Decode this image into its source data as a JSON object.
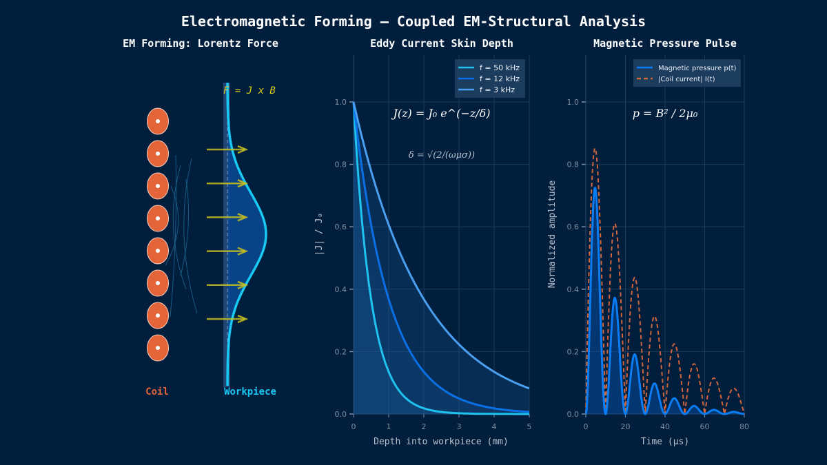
{
  "title": "Electromagnetic Forming — Coupled EM-Structural Analysis",
  "colors": {
    "background": "#011e3c",
    "coil": "#e4643a",
    "workpiece": "#18c8f5",
    "force": "#c8c020",
    "grid": "#1c3a5c",
    "tick": "#7f8fa3"
  },
  "panel1": {
    "title": "EM Forming: Lorentz Force",
    "force_label": "F = J x B",
    "coil_label": "Coil",
    "workpiece_label": "Workpiece",
    "coil_count": 8,
    "arrow_count": 5
  },
  "chart_data": [
    {
      "type": "line",
      "title": "Eddy Current Skin Depth",
      "xlabel": "Depth into workpiece (mm)",
      "ylabel": "|J| / J₀",
      "xlim": [
        0,
        5
      ],
      "ylim": [
        0,
        1.15
      ],
      "xticks": [
        "0",
        "1",
        "2",
        "3",
        "4",
        "5"
      ],
      "yticks": [
        "0.0",
        "0.2",
        "0.4",
        "0.6",
        "0.8",
        "1.0"
      ],
      "grid": true,
      "legend": "top-right",
      "annotation_1": "J(z) = J₀ e^(−z/δ)",
      "annotation_2": "δ = √(2/(ωμσ))",
      "series": [
        {
          "name": "f = 50 kHz",
          "skin_depth_mm": 0.5,
          "color": "#1ec3ef"
        },
        {
          "name": "f = 12 kHz",
          "skin_depth_mm": 1.0,
          "color": "#0b6fe6"
        },
        {
          "name": "f = 3 kHz",
          "skin_depth_mm": 2.0,
          "color": "#4a9ff0"
        }
      ]
    },
    {
      "type": "line",
      "title": "Magnetic Pressure Pulse",
      "xlabel": "Time (µs)",
      "ylabel": "Normalized amplitude",
      "xlim": [
        0,
        80
      ],
      "ylim": [
        0,
        1.15
      ],
      "xticks": [
        "0",
        "20",
        "40",
        "60",
        "80"
      ],
      "yticks": [
        "0.0",
        "0.2",
        "0.4",
        "0.6",
        "0.8",
        "1.0"
      ],
      "grid": true,
      "legend": "top-right",
      "annotation": "p = B² / 2μ₀",
      "series": [
        {
          "name": "Magnetic pressure p(t)",
          "color": "#0a7df5",
          "style": "solid",
          "peaks_t": [
            5,
            15,
            25,
            35,
            45,
            55,
            65,
            75
          ],
          "peaks_y": [
            0.72,
            0.37,
            0.19,
            0.097,
            0.05,
            0.026,
            0.013,
            0.007
          ]
        },
        {
          "name": "|Coil current| I(t)",
          "color": "#d0663e",
          "style": "dashed",
          "peaks_t": [
            5,
            15,
            25,
            35,
            45,
            55,
            65,
            75
          ],
          "peaks_y": [
            0.85,
            0.61,
            0.44,
            0.31,
            0.22,
            0.16,
            0.115,
            0.082
          ]
        }
      ]
    }
  ]
}
